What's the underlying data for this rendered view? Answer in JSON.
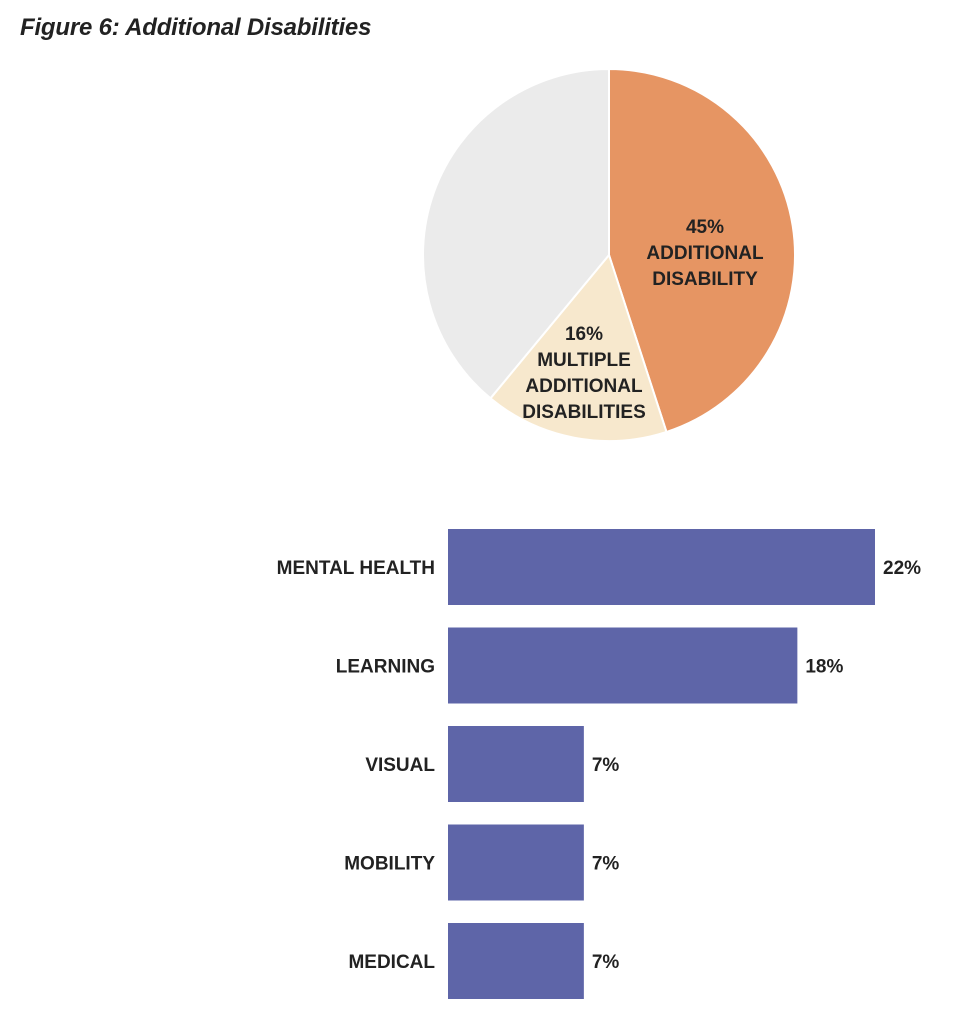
{
  "figure": {
    "title": "Figure 6: Additional Disabilities"
  },
  "chart_data": [
    {
      "type": "pie",
      "title": "",
      "slices": [
        {
          "value": 45,
          "label_pct": "45%",
          "label_lines": [
            "ADDITIONAL",
            "DISABILITY"
          ],
          "color": "#E69563"
        },
        {
          "value": 16,
          "label_pct": "16%",
          "label_lines": [
            "MULTIPLE",
            "ADDITIONAL",
            "DISABILITIES"
          ],
          "color": "#F7E8CD"
        },
        {
          "value": 39,
          "label_pct": "",
          "label_lines": [],
          "color": "#EBEBEB"
        }
      ]
    },
    {
      "type": "bar",
      "orientation": "horizontal",
      "title": "",
      "xlabel": "",
      "ylabel": "",
      "categories": [
        "MENTAL HEALTH",
        "LEARNING",
        "VISUAL",
        "MOBILITY",
        "MEDICAL"
      ],
      "values": [
        22,
        18,
        7,
        7,
        7
      ],
      "value_labels": [
        "22%",
        "18%",
        "7%",
        "7%",
        "7%"
      ],
      "color": "#5E65A8"
    }
  ]
}
